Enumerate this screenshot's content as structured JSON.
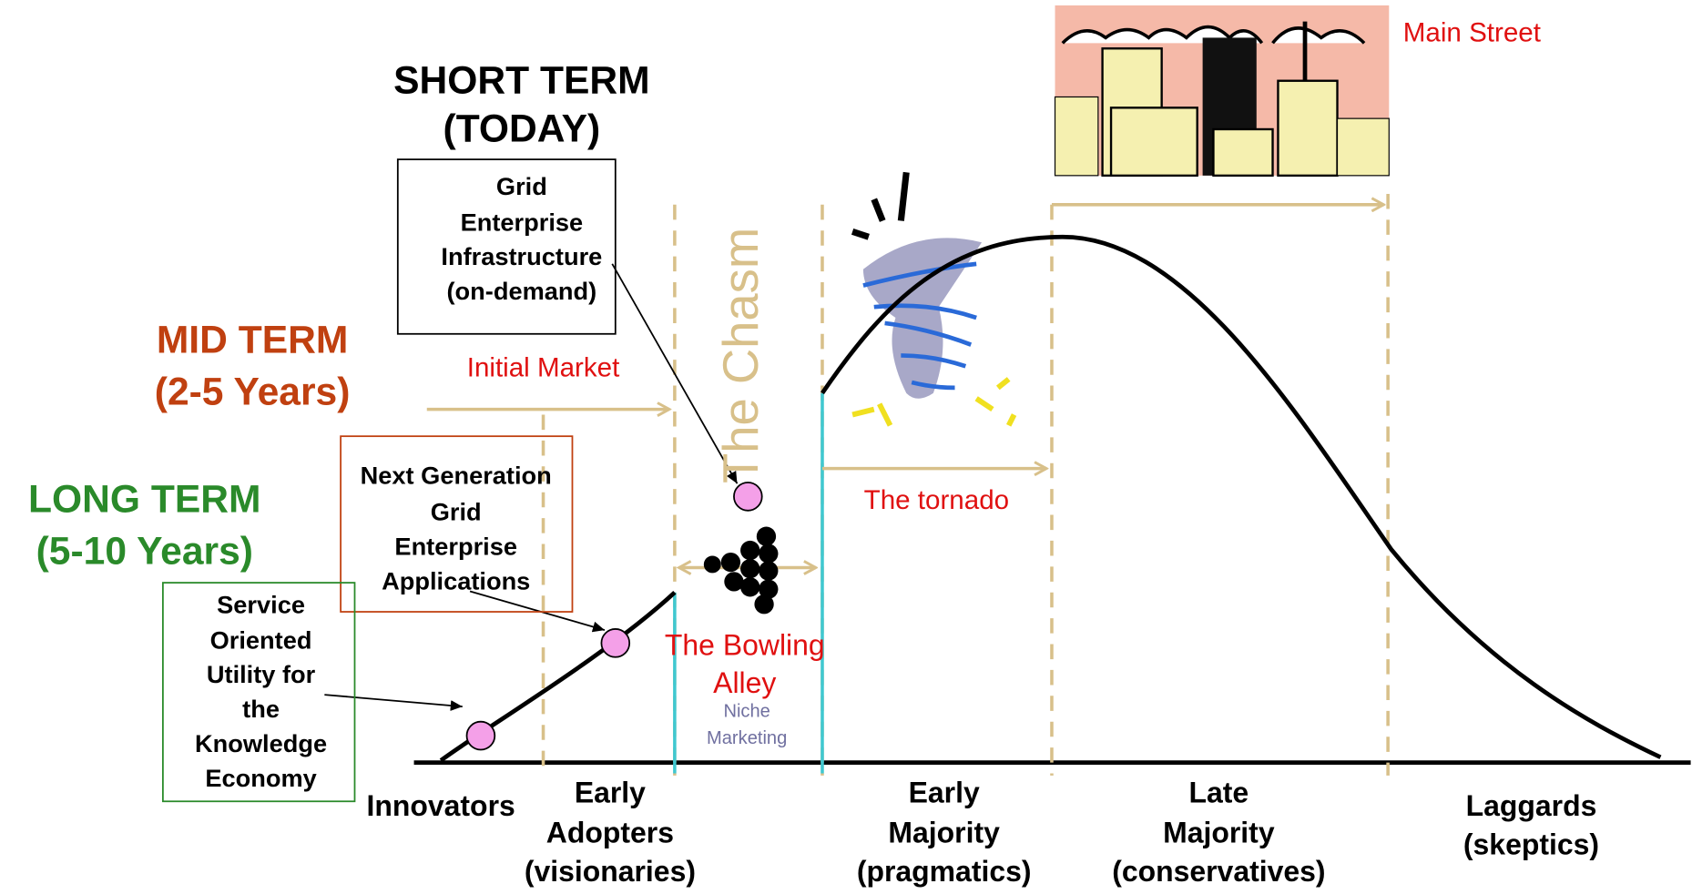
{
  "header": {
    "short_term": [
      "SHORT TERM",
      "(TODAY)"
    ],
    "mid_term": [
      "MID TERM",
      "(2-5 Years)"
    ],
    "long_term": [
      "LONG TERM",
      "(5-10 Years)"
    ]
  },
  "boxes": [
    {
      "lines": [
        "Grid",
        "Enterprise",
        "Infrastructure",
        "(on-demand)"
      ]
    },
    {
      "lines": [
        "Next Generation",
        "Grid",
        "Enterprise",
        "Applications"
      ]
    },
    {
      "lines": [
        "Service",
        "Oriented",
        "Utility for",
        "the",
        "Knowledge",
        "Economy"
      ]
    }
  ],
  "labels": {
    "initial_market": "Initial Market",
    "chasm": "The Chasm",
    "tornado": "The tornado",
    "main_street": "Main Street",
    "bowling_alley": [
      "The Bowling",
      "Alley"
    ],
    "niche": [
      "Niche",
      "Marketing"
    ]
  },
  "segments": [
    {
      "lines": [
        "Innovators"
      ]
    },
    {
      "lines": [
        "Early",
        "Adopters",
        "(visionaries)"
      ]
    },
    {
      "lines": [
        "Early",
        "Majority",
        "(pragmatics)"
      ]
    },
    {
      "lines": [
        "Late",
        "Majority",
        "(conservatives)"
      ]
    },
    {
      "lines": [
        "Laggards",
        "(skeptics)"
      ]
    }
  ]
}
